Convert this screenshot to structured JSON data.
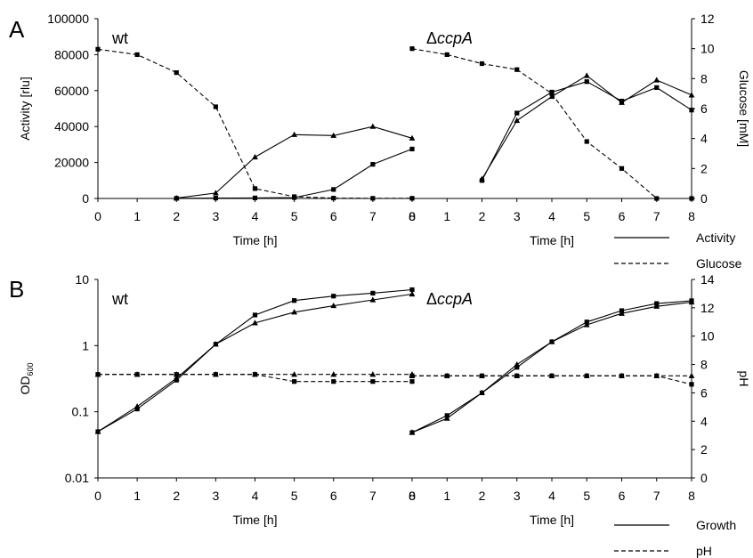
{
  "panel_labels": [
    "A",
    "B"
  ],
  "legends": {
    "A": [
      {
        "label": "Activity",
        "dash": "solid"
      },
      {
        "label": "Glucose",
        "dash": "dashed"
      }
    ],
    "B": [
      {
        "label": "Growth",
        "dash": "solid"
      },
      {
        "label": "pH",
        "dash": "dashed"
      }
    ]
  },
  "chart_data": [
    {
      "id": "A-wt",
      "type": "line",
      "title": "wt",
      "title_italic_part": "",
      "xlabel": "Time [h]",
      "ylabel": "Activity [rlu]",
      "y2label": "",
      "xlim": [
        0,
        8
      ],
      "x_ticks": [
        0,
        1,
        2,
        3,
        4,
        5,
        6,
        7,
        8
      ],
      "ylim": [
        0,
        100000
      ],
      "y_scale": "linear",
      "y_ticks": [
        0,
        20000,
        40000,
        60000,
        80000,
        100000
      ],
      "y_tick_labels": [
        "0",
        "20000",
        "40000",
        "60000",
        "80000",
        "100000"
      ],
      "y2lim": null,
      "y2_ticks": [],
      "y2_tick_labels": [],
      "series": [
        {
          "axis": "left",
          "dash": "solid",
          "marker": "triangle",
          "x": [
            2,
            3,
            4,
            5,
            6,
            7,
            8
          ],
          "y": [
            200,
            3000,
            23000,
            35500,
            35000,
            40000,
            33500
          ]
        },
        {
          "axis": "left",
          "dash": "solid",
          "marker": "square",
          "x": [
            2,
            3,
            4,
            5,
            6,
            7,
            8
          ],
          "y": [
            100,
            200,
            300,
            500,
            5000,
            19000,
            27500
          ]
        },
        {
          "axis": "left",
          "dash": "dashed",
          "marker": "square",
          "x": [
            0,
            1,
            2,
            3,
            4,
            5,
            6,
            7,
            8
          ],
          "y": [
            83000,
            80000,
            70000,
            51000,
            5500,
            1000,
            200,
            100,
            100
          ]
        }
      ]
    },
    {
      "id": "A-ccpA",
      "type": "line",
      "title": "Δ",
      "title_italic_part": "ccpA",
      "xlabel": "Time [h]",
      "ylabel": "",
      "y2label": "Glucose [mM]",
      "xlim": [
        0,
        8
      ],
      "x_ticks": [
        0,
        1,
        2,
        3,
        4,
        5,
        6,
        7,
        8
      ],
      "ylim": [
        0,
        100000
      ],
      "y_scale": "linear",
      "y_ticks": [],
      "y_tick_labels": [],
      "y2lim": [
        0,
        12
      ],
      "y2_ticks": [
        0,
        2,
        4,
        6,
        8,
        10,
        12
      ],
      "y2_tick_labels": [
        "0",
        "2",
        "4",
        "6",
        "8",
        "10",
        "12"
      ],
      "series": [
        {
          "axis": "right",
          "dash": "solid",
          "marker": "triangle",
          "x": [
            2,
            3,
            4,
            5,
            6,
            7,
            8
          ],
          "y": [
            1.3,
            5.2,
            6.8,
            8.2,
            6.4,
            7.9,
            6.9
          ]
        },
        {
          "axis": "right",
          "dash": "solid",
          "marker": "square",
          "x": [
            2,
            3,
            4,
            5,
            6,
            7,
            8
          ],
          "y": [
            1.2,
            5.7,
            7.1,
            7.8,
            6.5,
            7.4,
            5.9
          ]
        },
        {
          "axis": "right",
          "dash": "dashed",
          "marker": "square",
          "x": [
            0,
            1,
            2,
            3,
            4,
            5,
            6,
            7,
            8
          ],
          "y": [
            10,
            9.6,
            9.0,
            8.6,
            7.0,
            3.8,
            2.0,
            0,
            0
          ]
        }
      ]
    },
    {
      "id": "B-wt",
      "type": "line",
      "title": "wt",
      "title_italic_part": "",
      "xlabel": "Time [h]",
      "ylabel": "OD",
      "ylabel_sub": "600",
      "y2label": "",
      "xlim": [
        0,
        8
      ],
      "x_ticks": [
        0,
        1,
        2,
        3,
        4,
        5,
        6,
        7,
        8
      ],
      "ylim": [
        0.01,
        10
      ],
      "y_scale": "log",
      "y_ticks": [
        0.01,
        0.1,
        1,
        10
      ],
      "y_tick_labels": [
        "0.01",
        "0.1",
        "1",
        "10"
      ],
      "y2lim": [
        0,
        14
      ],
      "y2_ticks": [],
      "y2_tick_labels": [],
      "series": [
        {
          "axis": "left",
          "dash": "solid",
          "marker": "square",
          "x": [
            0,
            1,
            2,
            3,
            4,
            5,
            6,
            7,
            8
          ],
          "y": [
            0.05,
            0.11,
            0.3,
            1.05,
            2.9,
            4.8,
            5.6,
            6.2,
            7.0
          ]
        },
        {
          "axis": "left",
          "dash": "solid",
          "marker": "triangle",
          "x": [
            0,
            1,
            2,
            3,
            4,
            5,
            6,
            7,
            8
          ],
          "y": [
            0.05,
            0.12,
            0.32,
            1.05,
            2.2,
            3.2,
            4.0,
            4.9,
            6.0
          ]
        },
        {
          "axis": "right",
          "dash": "dashed",
          "marker": "triangle",
          "x": [
            0,
            1,
            2,
            3,
            4,
            5,
            6,
            7,
            8
          ],
          "y": [
            7.3,
            7.3,
            7.3,
            7.3,
            7.3,
            7.3,
            7.3,
            7.3,
            7.3
          ]
        },
        {
          "axis": "right",
          "dash": "dashed",
          "marker": "square",
          "x": [
            0,
            1,
            2,
            3,
            4,
            5,
            6,
            7,
            8
          ],
          "y": [
            7.3,
            7.3,
            7.3,
            7.3,
            7.3,
            6.8,
            6.8,
            6.8,
            6.8
          ]
        }
      ]
    },
    {
      "id": "B-ccpA",
      "type": "line",
      "title": "Δ",
      "title_italic_part": "ccpA",
      "xlabel": "Time [h]",
      "ylabel": "",
      "y2label": "pH",
      "xlim": [
        0,
        8
      ],
      "x_ticks": [
        0,
        1,
        2,
        3,
        4,
        5,
        6,
        7,
        8
      ],
      "ylim": [
        0.01,
        10
      ],
      "y_scale": "log",
      "y_ticks": [],
      "y_tick_labels": [],
      "y2lim": [
        0,
        14
      ],
      "y2_ticks": [
        0,
        2,
        4,
        6,
        8,
        10,
        12,
        14
      ],
      "y2_tick_labels": [
        "0",
        "2",
        "4",
        "6",
        "8",
        "10",
        "12",
        "14"
      ],
      "series": [
        {
          "axis": "right",
          "dash": "solid",
          "marker": "square",
          "x": [
            0,
            1,
            2,
            3,
            4,
            5,
            6,
            7,
            8
          ],
          "y": [
            3.2,
            4.4,
            6.0,
            7.8,
            9.6,
            11.0,
            11.8,
            12.3,
            12.5
          ]
        },
        {
          "axis": "right",
          "dash": "solid",
          "marker": "triangle",
          "x": [
            0,
            1,
            2,
            3,
            4,
            5,
            6,
            7,
            8
          ],
          "y": [
            3.2,
            4.2,
            6.0,
            8.0,
            9.6,
            10.8,
            11.6,
            12.1,
            12.4
          ]
        },
        {
          "axis": "right",
          "dash": "dashed",
          "marker": "triangle",
          "x": [
            0,
            1,
            2,
            3,
            4,
            5,
            6,
            7,
            8
          ],
          "y": [
            7.2,
            7.2,
            7.2,
            7.2,
            7.2,
            7.2,
            7.2,
            7.2,
            7.2
          ]
        },
        {
          "axis": "right",
          "dash": "dashed",
          "marker": "square",
          "x": [
            0,
            1,
            2,
            3,
            4,
            5,
            6,
            7,
            8
          ],
          "y": [
            7.2,
            7.2,
            7.2,
            7.2,
            7.2,
            7.2,
            7.2,
            7.2,
            6.6
          ]
        }
      ]
    }
  ]
}
